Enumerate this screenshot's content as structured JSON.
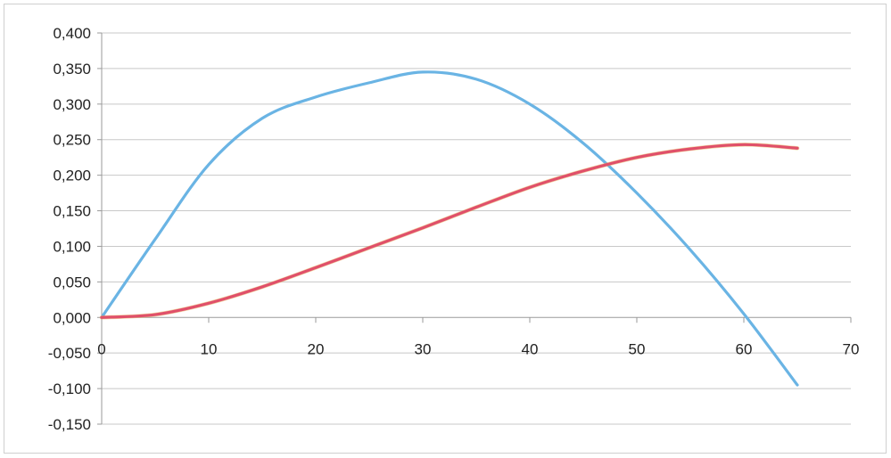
{
  "chart_data": {
    "type": "line",
    "title": "",
    "xlabel": "",
    "ylabel": "",
    "xlim": [
      0,
      70
    ],
    "ylim": [
      -0.15,
      0.4
    ],
    "x_ticks": [
      0,
      10,
      20,
      30,
      40,
      50,
      60,
      70
    ],
    "y_ticks": [
      -0.15,
      -0.1,
      -0.05,
      0,
      0.05,
      0.1,
      0.15,
      0.2,
      0.25,
      0.3,
      0.35,
      0.4
    ],
    "x_tick_labels": [
      "0",
      "10",
      "20",
      "30",
      "40",
      "50",
      "60",
      "70"
    ],
    "y_tick_labels": [
      "-0,150",
      "-0,100",
      "-0,050",
      "0,000",
      "0,050",
      "0,100",
      "0,150",
      "0,200",
      "0,250",
      "0,300",
      "0,350",
      "0,400"
    ],
    "grid": true,
    "legend": "none",
    "series": [
      {
        "color": "#6ab4e4",
        "x": [
          0,
          5,
          10,
          15,
          20,
          25,
          30,
          35,
          40,
          45,
          50,
          55,
          60,
          65
        ],
        "y": [
          0.0,
          0.11,
          0.215,
          0.28,
          0.31,
          0.33,
          0.345,
          0.335,
          0.3,
          0.245,
          0.175,
          0.095,
          0.005,
          -0.095
        ]
      },
      {
        "color": "#e0506a",
        "x": [
          0,
          5,
          10,
          15,
          20,
          25,
          30,
          35,
          40,
          45,
          50,
          55,
          60,
          65
        ],
        "y": [
          0.0,
          0.004,
          0.02,
          0.043,
          0.07,
          0.098,
          0.126,
          0.155,
          0.183,
          0.206,
          0.225,
          0.237,
          0.243,
          0.238
        ]
      }
    ]
  }
}
